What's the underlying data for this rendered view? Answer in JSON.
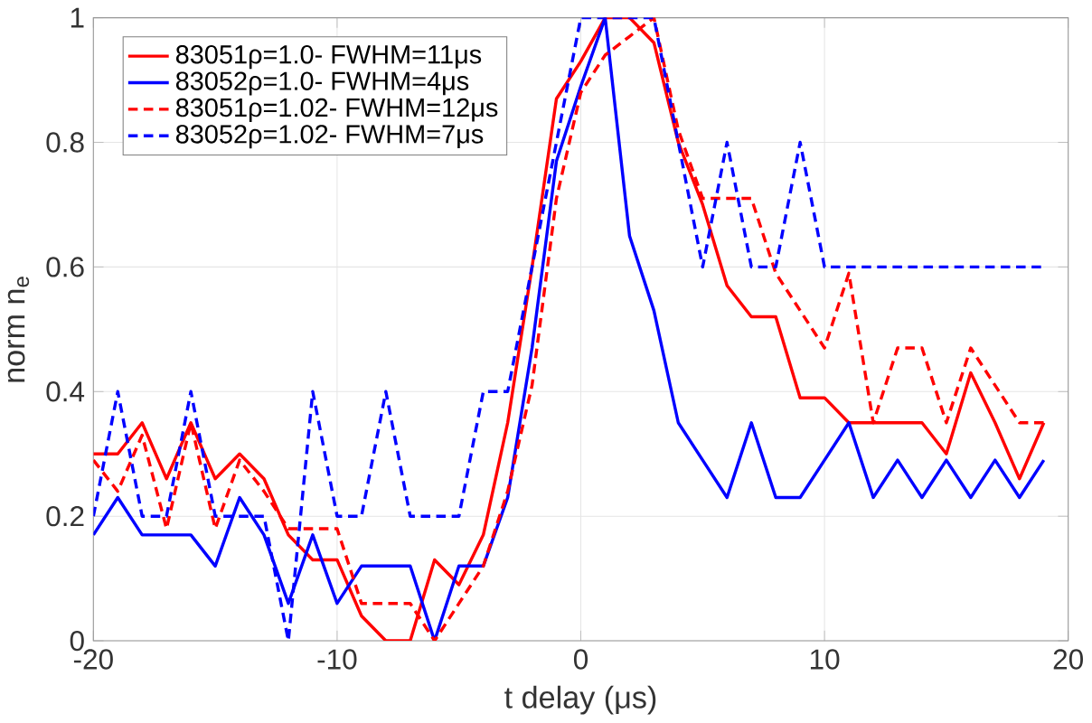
{
  "chart_data": {
    "type": "line",
    "xlabel": "t delay (μs)",
    "ylabel": "norm n$_{e}$",
    "x": [
      -20,
      -19,
      -18,
      -17,
      -16,
      -15,
      -14,
      -13,
      -12,
      -11,
      -10,
      -9,
      -8,
      -7,
      -6,
      -5,
      -4,
      -3,
      -2,
      -1,
      0,
      1,
      2,
      3,
      4,
      5,
      6,
      7,
      8,
      9,
      10,
      11,
      12,
      13,
      14,
      15,
      16,
      17,
      18,
      19
    ],
    "xlim": [
      -20,
      20
    ],
    "ylim": [
      0,
      1
    ],
    "xticks": [
      -20,
      -10,
      0,
      10,
      20
    ],
    "yticks": [
      0,
      0.2,
      0.4,
      0.6,
      0.8,
      1
    ],
    "grid": true,
    "legend": "top left",
    "series": [
      {
        "name": "83051ρ=1.0- FWHM=11μs",
        "color": "#ff0000",
        "line_style": "solid",
        "values": [
          0.3,
          0.3,
          0.35,
          0.26,
          0.35,
          0.26,
          0.3,
          0.26,
          0.17,
          0.13,
          0.13,
          0.04,
          0,
          0,
          0.13,
          0.09,
          0.17,
          0.35,
          0.6,
          0.87,
          0.93,
          1.0,
          1.0,
          0.96,
          0.8,
          0.7,
          0.57,
          0.52,
          0.52,
          0.39,
          0.39,
          0.35,
          0.35,
          0.35,
          0.35,
          0.3,
          0.43,
          0.35,
          0.26,
          0.35
        ]
      },
      {
        "name": "83052ρ=1.0- FWHM=4μs",
        "color": "#0000ff",
        "line_style": "solid",
        "values": [
          0.17,
          0.23,
          0.17,
          0.17,
          0.17,
          0.12,
          0.23,
          0.17,
          0.06,
          0.17,
          0.06,
          0.12,
          0.12,
          0.12,
          0,
          0.12,
          0.12,
          0.23,
          0.47,
          0.77,
          0.89,
          1.0,
          0.65,
          0.53,
          0.35,
          0.29,
          0.23,
          0.35,
          0.23,
          0.23,
          0.29,
          0.35,
          0.23,
          0.29,
          0.23,
          0.29,
          0.23,
          0.29,
          0.23,
          0.29
        ]
      },
      {
        "name": "83051ρ=1.02- FWHM=12μs",
        "color": "#ff0000",
        "line_style": "dashed",
        "values": [
          0.29,
          0.24,
          0.33,
          0.18,
          0.35,
          0.18,
          0.29,
          0.24,
          0.18,
          0.18,
          0.18,
          0.06,
          0.06,
          0.06,
          0,
          0.06,
          0.12,
          0.24,
          0.41,
          0.71,
          0.88,
          0.94,
          0.97,
          1.0,
          0.82,
          0.71,
          0.71,
          0.71,
          0.59,
          0.53,
          0.47,
          0.59,
          0.35,
          0.47,
          0.47,
          0.35,
          0.47,
          0.41,
          0.35,
          0.35
        ]
      },
      {
        "name": "83052ρ=1.02- FWHM=7μs",
        "color": "#0000ff",
        "line_style": "dashed",
        "values": [
          0.2,
          0.4,
          0.2,
          0.2,
          0.4,
          0.2,
          0.2,
          0.2,
          0,
          0.4,
          0.2,
          0.2,
          0.4,
          0.2,
          0.2,
          0.2,
          0.4,
          0.4,
          0.6,
          0.8,
          1.0,
          1.0,
          1.0,
          1.0,
          0.8,
          0.6,
          0.8,
          0.6,
          0.6,
          0.8,
          0.6,
          0.6,
          0.6,
          0.6,
          0.6,
          0.6,
          0.6,
          0.6,
          0.6,
          0.6
        ]
      }
    ]
  }
}
